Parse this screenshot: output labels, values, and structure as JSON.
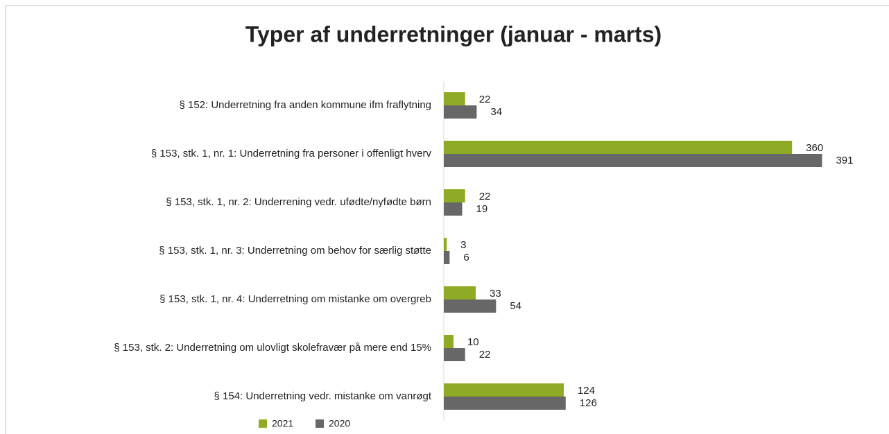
{
  "chart_data": {
    "type": "bar",
    "orientation": "horizontal",
    "title": "Typer af underretninger (januar - marts)",
    "categories": [
      "§ 152: Underretning fra anden kommune ifm fraflytning",
      "§ 153, stk. 1, nr. 1: Underretning fra personer i offenligt hverv",
      "§ 153, stk. 1, nr. 2: Underrening vedr. ufødte/nyfødte børn",
      "§ 153, stk. 1, nr. 3: Underretning om behov for særlig støtte",
      "§ 153, stk. 1, nr. 4: Underretning om mistanke om overgreb",
      "§ 153, stk. 2: Underretning om ulovligt skolefravær på mere end 15%",
      "§ 154: Underretning vedr. mistanke om vanrøgt"
    ],
    "series": [
      {
        "name": "2021",
        "color": "#8fab25",
        "values": [
          22,
          360,
          22,
          3,
          33,
          10,
          124
        ]
      },
      {
        "name": "2020",
        "color": "#676767",
        "values": [
          34,
          391,
          19,
          6,
          54,
          22,
          126
        ]
      }
    ],
    "xlim": [
      0,
      400
    ],
    "legend": "bottom"
  }
}
